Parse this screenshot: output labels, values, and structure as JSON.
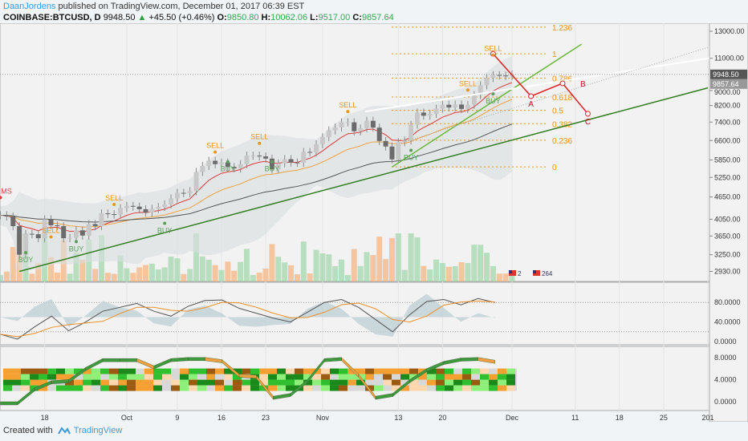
{
  "header": {
    "author": "DaanJordens",
    "published": "published on TradingView.com, December 01, 2017 06:39 EST",
    "symbol": "COINBASE:BTCUSD, D",
    "last": "9948.50",
    "change": "+45.50 (+0.46%)",
    "o_label": "O:",
    "o": "9850.80",
    "h_label": "H:",
    "h": "10062.06",
    "l_label": "L:",
    "l": "9517.00",
    "c_label": "C:",
    "c": "9857.64"
  },
  "footer": {
    "created": "Created with",
    "brand": "TradingView"
  },
  "colors": {
    "up": "#c8c8c8",
    "down": "#6b6b6b",
    "fib": "#e8951c",
    "trend": "#2f7d1f",
    "trend2": "#6bb83a",
    "abc": "#e02020",
    "sell": "#e8951c",
    "buy": "#5a9e5a",
    "ema1": "#e03a3a",
    "ema2": "#f0a040",
    "sma": "#555"
  },
  "chart_data": {
    "type": "candlestick",
    "start_date": "2017-09-11",
    "closes": [
      4150,
      4120,
      3880,
      3250,
      3700,
      3690,
      3600,
      4050,
      3900,
      3880,
      3600,
      3610,
      3780,
      3660,
      3930,
      3880,
      4200,
      4180,
      4170,
      4340,
      4400,
      4380,
      4310,
      4220,
      4320,
      4370,
      4440,
      4610,
      4770,
      4760,
      4820,
      5430,
      5640,
      5820,
      5700,
      5760,
      5600,
      5550,
      5700,
      6010,
      6010,
      5980,
      5900,
      5520,
      5730,
      5880,
      5760,
      5750,
      6150,
      6130,
      6450,
      6740,
      7030,
      7160,
      7390,
      7390,
      6990,
      7120,
      7460,
      7150,
      6580,
      6360,
      5870,
      6530,
      6600,
      7280,
      7850,
      7700,
      7790,
      8040,
      8240,
      8100,
      8250,
      8030,
      8230,
      8750,
      9300,
      9730,
      9910,
      9880,
      9850,
      9948
    ],
    "price_ticks": [
      "13000.00",
      "11000.00",
      "9000.00",
      "8200.00",
      "7400.00",
      "6600.00",
      "5850.00",
      "5250.00",
      "4650.00",
      "4050.00",
      "3650.00",
      "3250.00",
      "2930.00"
    ],
    "last_price_label": "9948.50",
    "close_label": "9857.64",
    "time_ticks": [
      {
        "day": 7,
        "label": "18"
      },
      {
        "day": 20,
        "label": "Oct"
      },
      {
        "day": 28,
        "label": "9"
      },
      {
        "day": 35,
        "label": "16"
      },
      {
        "day": 42,
        "label": "23"
      },
      {
        "day": 51,
        "label": "Nov"
      },
      {
        "day": 63,
        "label": "13"
      },
      {
        "day": 70,
        "label": "20"
      },
      {
        "day": 81,
        "label": "Dec"
      },
      {
        "day": 91,
        "label": "11"
      },
      {
        "day": 98,
        "label": "18"
      },
      {
        "day": 105,
        "label": "25"
      },
      {
        "day": 112,
        "label": "201"
      }
    ],
    "fib": {
      "low": 5603,
      "high": 11300,
      "levels": [
        {
          "v": 1.236,
          "label": "1.236"
        },
        {
          "v": 1,
          "label": "1"
        },
        {
          "v": 0.786,
          "label": "0.786"
        },
        {
          "v": 0.618,
          "label": "0.618"
        },
        {
          "v": 0.5,
          "label": "0.5"
        },
        {
          "v": 0.382,
          "label": "0.382"
        },
        {
          "v": 0.236,
          "label": "0.236"
        },
        {
          "v": 0,
          "label": "0"
        }
      ]
    },
    "signals": [
      {
        "day": 0,
        "price": 4750,
        "label": "MS",
        "kind": "ms"
      },
      {
        "day": 4,
        "price": 3100,
        "label": "BUY",
        "kind": "buy"
      },
      {
        "day": 8,
        "price": 3720,
        "label": "SELL",
        "kind": "sell"
      },
      {
        "day": 12,
        "price": 3320,
        "label": "BUY",
        "kind": "buy"
      },
      {
        "day": 18,
        "price": 4550,
        "label": "SELL",
        "kind": "sell"
      },
      {
        "day": 26,
        "price": 3720,
        "label": "BUY",
        "kind": "buy"
      },
      {
        "day": 34,
        "price": 6300,
        "label": "SELL",
        "kind": "sell"
      },
      {
        "day": 36,
        "price": 5450,
        "label": "BUY",
        "kind": "buy"
      },
      {
        "day": 41,
        "price": 6650,
        "label": "SELL",
        "kind": "sell"
      },
      {
        "day": 43,
        "price": 5450,
        "label": "BUY",
        "kind": "buy"
      },
      {
        "day": 55,
        "price": 8100,
        "label": "SELL",
        "kind": "sell"
      },
      {
        "day": 65,
        "price": 5850,
        "label": "BUY",
        "kind": "buy"
      },
      {
        "day": 74,
        "price": 9250,
        "label": "SELL",
        "kind": "sell"
      },
      {
        "day": 78,
        "price": 8300,
        "label": "BUY",
        "kind": "buy"
      },
      {
        "day": 78,
        "price": 11500,
        "label": "SELL",
        "kind": "sell"
      }
    ],
    "abc": [
      {
        "day": 78,
        "price": 11300,
        "label": ""
      },
      {
        "day": 84,
        "price": 8690,
        "label": "A"
      },
      {
        "day": 89,
        "price": 9410,
        "label": "B"
      },
      {
        "day": 93,
        "price": 7790,
        "label": "C"
      }
    ],
    "trendlines": [
      {
        "from": {
          "day": 3,
          "price": 2930
        },
        "to": {
          "day": 112,
          "price": 9150
        },
        "color": "trend"
      },
      {
        "from": {
          "day": 62,
          "price": 5600
        },
        "to": {
          "day": 92,
          "price": 12000
        },
        "color": "trend2"
      }
    ],
    "stoch": {
      "ticks": [
        "80.0000",
        "40.0000",
        "0.0000"
      ],
      "step_days": 3,
      "k": [
        15,
        5,
        30,
        52,
        22,
        40,
        62,
        70,
        78,
        62,
        52,
        72,
        84,
        85,
        68,
        58,
        48,
        40,
        60,
        80,
        86,
        70,
        45,
        20,
        55,
        82,
        86,
        75,
        88,
        80
      ]
    },
    "wave": {
      "ticks": [
        "8.0000",
        "4.0000",
        "0.0000"
      ],
      "step_days": 3,
      "v": [
        0,
        0,
        2.5,
        3.8,
        4,
        6.2,
        7.8,
        7.8,
        7.8,
        6.5,
        7.8,
        8,
        8,
        7.6,
        5,
        4.8,
        1,
        1.5,
        4,
        7.8,
        8,
        5,
        1,
        1.5,
        4,
        6,
        7.3,
        7.9,
        8,
        7.5
      ]
    }
  }
}
